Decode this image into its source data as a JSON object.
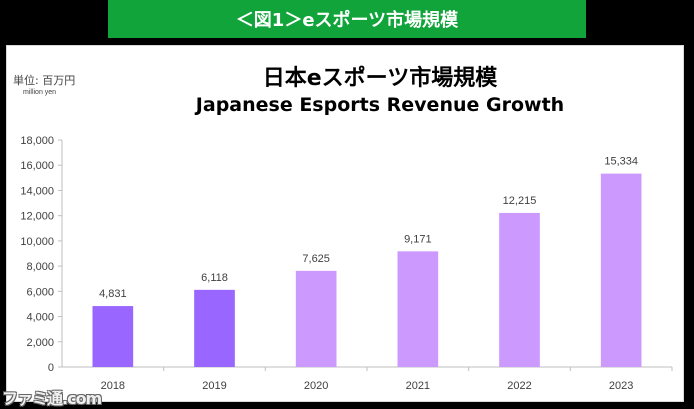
{
  "banner": {
    "text": "＜図1＞eスポーツ市場規模"
  },
  "unit_label": "単位: 百万円",
  "unit_sub_label": "million yen",
  "watermark": "ファミ通.com",
  "colors": {
    "banner_bg": "#11a43a",
    "bar_dark": "#9966ff",
    "bar_light": "#cc99ff",
    "axis": "#bfbfbf"
  },
  "chart_data": {
    "type": "bar",
    "title": "日本eスポーツ市場規模",
    "subtitle": "Japanese Esports Revenue Growth",
    "categories": [
      "2018",
      "2019",
      "2020",
      "2021",
      "2022",
      "2023"
    ],
    "values": [
      4831,
      6118,
      7625,
      9171,
      12215,
      15334
    ],
    "value_labels": [
      "4,831",
      "6,118",
      "7,625",
      "9,171",
      "12,215",
      "15,334"
    ],
    "bar_colors": [
      "#9966ff",
      "#9966ff",
      "#cc99ff",
      "#cc99ff",
      "#cc99ff",
      "#cc99ff"
    ],
    "ylim": [
      0,
      18000
    ],
    "yticks": [
      0,
      2000,
      4000,
      6000,
      8000,
      10000,
      12000,
      14000,
      16000,
      18000
    ],
    "ytick_labels": [
      "0",
      "2,000",
      "4,000",
      "6,000",
      "8,000",
      "10,000",
      "12,000",
      "14,000",
      "16,000",
      "18,000"
    ],
    "grid": false,
    "legend": "none"
  }
}
